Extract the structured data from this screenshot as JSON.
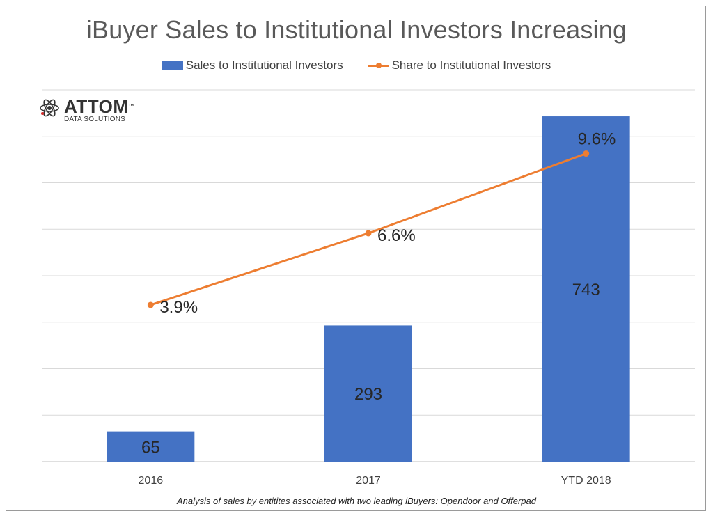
{
  "chart_data": {
    "type": "bar+line",
    "title": "iBuyer Sales to Institutional Investors Increasing",
    "categories": [
      "2016",
      "2017",
      "YTD 2018"
    ],
    "series": [
      {
        "name": "Sales to Institutional Investors",
        "type": "bar",
        "axis": "primary",
        "values": [
          65,
          293,
          743
        ],
        "labels": [
          "65",
          "293",
          "743"
        ],
        "color": "#4472C4"
      },
      {
        "name": "Share to Institutional Investors",
        "type": "line",
        "axis": "secondary",
        "values": [
          3.9,
          6.6,
          9.6
        ],
        "labels": [
          "3.9%",
          "6.6%",
          "9.6%"
        ],
        "color": "#ED7D31"
      }
    ],
    "ylim_primary": [
      0,
      800
    ],
    "ylim_secondary": [
      -2,
      12
    ],
    "grid": true,
    "legend_position": "top",
    "footnote": "Analysis of sales by entitites associated with two leading iBuyers: Opendoor and Offerpad"
  },
  "logo": {
    "name": "ATTOM",
    "trademark": "™",
    "subtitle": "DATA SOLUTIONS"
  },
  "colors": {
    "grid": "#d9d9d9",
    "axis_text": "#404040",
    "title": "#595959"
  }
}
